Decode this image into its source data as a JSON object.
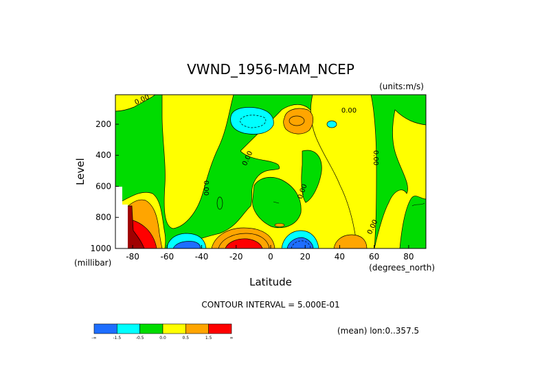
{
  "chart_data": {
    "type": "heatmap",
    "title": "VWND_1956-MAM_NCEP",
    "units_label": "(units:m/s)",
    "xlabel": "Latitude",
    "x_units_label": "(degrees_north)",
    "ylabel": "Level",
    "y_units_label": "(millibar)",
    "xlim": [
      -90,
      90
    ],
    "ylim": [
      1000,
      10
    ],
    "x_ticks": [
      -80,
      -60,
      -40,
      -20,
      0,
      20,
      40,
      60,
      80
    ],
    "y_ticks": [
      200,
      400,
      600,
      800,
      1000
    ],
    "contour_interval_label": "CONTOUR INTERVAL = 5.000E-01",
    "footer_label": "(mean) lon:0..357.5",
    "colorbar": {
      "bins": [
        {
          "low": "-inf",
          "high": -1.5,
          "color": "#1e6eff"
        },
        {
          "low": -1.5,
          "high": -0.5,
          "color": "#00ffff"
        },
        {
          "low": -0.5,
          "high": 0.0,
          "color": "#00dc00"
        },
        {
          "low": 0.0,
          "high": 0.5,
          "color": "#ffff00"
        },
        {
          "low": 0.5,
          "high": 1.5,
          "color": "#ffa500"
        },
        {
          "low": 1.5,
          "high": "inf",
          "color": "#ff0000"
        }
      ],
      "tick_labels": [
        "-∞",
        "-1.5",
        "-0.5",
        "0.0",
        "0.5",
        "1.5",
        "∞"
      ]
    },
    "contour_labels": [
      "0.00",
      "0.00",
      "0.00",
      "0.00",
      "0.00",
      "0.00",
      "0.00"
    ],
    "regions": [
      {
        "feature": "negative (cyan)",
        "lat_range": [
          -25,
          -5
        ],
        "level_range": [
          100,
          250
        ]
      },
      {
        "feature": "positive (orange)",
        "lat_range": [
          8,
          22
        ],
        "level_range": [
          100,
          220
        ]
      },
      {
        "feature": "negative (cyan, small)",
        "lat_range": [
          33,
          38
        ],
        "level_range": [
          150,
          220
        ]
      },
      {
        "feature": "strong positive (red)",
        "lat_range": [
          -30,
          -5
        ],
        "level_range": [
          850,
          1000
        ]
      },
      {
        "feature": "strong negative (blue)",
        "lat_range": [
          7,
          22
        ],
        "level_range": [
          900,
          1000
        ]
      },
      {
        "feature": "positive (orange)",
        "lat_range": [
          37,
          55
        ],
        "level_range": [
          900,
          1000
        ]
      },
      {
        "feature": "negative (cyan/blue)",
        "lat_range": [
          -61,
          -40
        ],
        "level_range": [
          900,
          1000
        ]
      },
      {
        "feature": "strong positive (red/dark red)",
        "lat_range": [
          -90,
          -70
        ],
        "level_range": [
          700,
          1000
        ]
      }
    ],
    "colors": {
      "blue": "#1e6eff",
      "cyan": "#00ffff",
      "green": "#00dc00",
      "yellow": "#ffff00",
      "orange": "#ffa500",
      "red": "#ff0000",
      "darkred": "#a00000",
      "missing": "#ffffff"
    }
  }
}
